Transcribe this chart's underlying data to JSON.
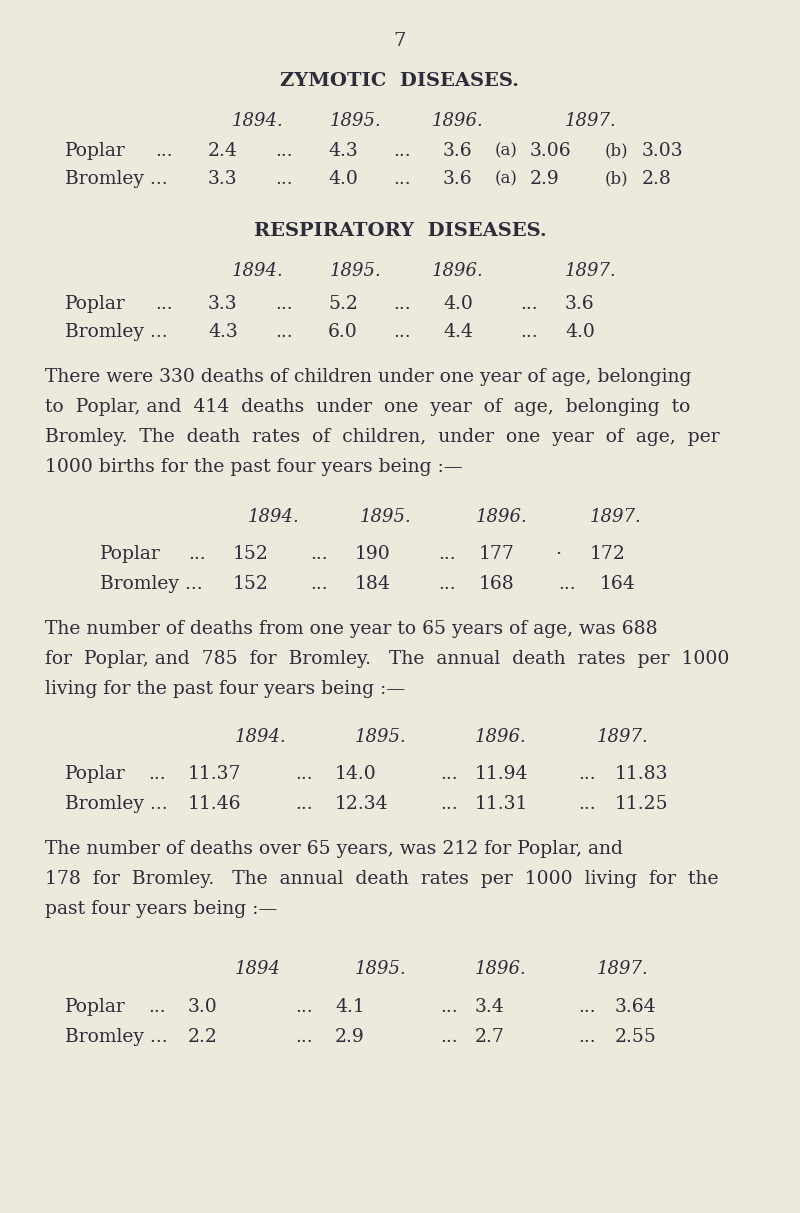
{
  "bg_color": "#ede9dc",
  "text_color": "#2d2d3a",
  "page_number": "7",
  "section1_title": "ZYMOTIC  DISEASES.",
  "section2_title": "RESPIRATORY  DISEASES.",
  "para1_lines": [
    "There were 330 deaths of children under one year of age, belonging",
    "to  Poplar, and  414  deaths  under  one  year  of  age,  belonging  to",
    "Bromley.  The  death  rates  of  children,  under  one  year  of  age,  per",
    "1000 births for the past four years being :—"
  ],
  "para2_lines": [
    "The number of deaths from one year to 65 years of age, was 688",
    "for  Poplar, and  785  for  Bromley.   The  annual  death  rates  per  1000",
    "living for the past four years being :—"
  ],
  "para3_lines": [
    "The number of deaths over 65 years, was 212 for Poplar, and",
    "178  for  Bromley.   The  annual  death  rates  per  1000  living  for  the",
    "past four years being :—"
  ]
}
